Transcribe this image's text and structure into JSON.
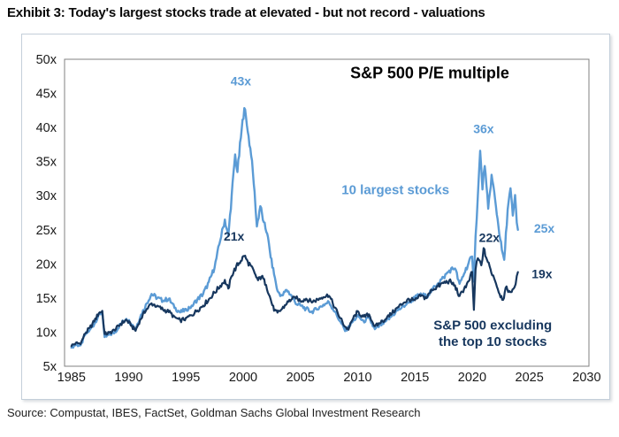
{
  "header": {
    "title": "Exhibit 3: Today's largest stocks trade at elevated - but not record - valuations"
  },
  "footer": {
    "source": "Source: Compustat, IBES, FactSet, Goldman Sachs Global Investment Research"
  },
  "colors": {
    "top10_line": "#5B9BD5",
    "ex_top10_line": "#17375E",
    "plot_border": "#808080",
    "card_border": "#c4cfda",
    "tick_text": "#1a1a1a",
    "title_text": "#000000"
  },
  "chart_data": {
    "type": "line",
    "title": "S&P 500 P/E multiple",
    "xlabel": "",
    "ylabel": "",
    "grid": false,
    "legend": "inline-labels",
    "xlim": [
      1984.4,
      2030.2
    ],
    "ylim": [
      5,
      50
    ],
    "x_ticks": [
      1985,
      1990,
      1995,
      2000,
      2005,
      2010,
      2015,
      2020,
      2025,
      2030
    ],
    "x_tick_labels": [
      "1985",
      "1990",
      "1995",
      "2000",
      "2005",
      "2010",
      "2015",
      "2020",
      "2025",
      "2030"
    ],
    "y_ticks": [
      50,
      45,
      40,
      35,
      30,
      25,
      20,
      15,
      10,
      5
    ],
    "y_tick_labels": [
      "50x",
      "45x",
      "40x",
      "35x",
      "30x",
      "25x",
      "20x",
      "15x",
      "10x",
      "5x"
    ],
    "series": [
      {
        "name": "10 largest stocks",
        "color": "#5B9BD5",
        "width": 2.4,
        "points": [
          [
            1985.0,
            7.8
          ],
          [
            1985.4,
            8.2
          ],
          [
            1985.8,
            8.0
          ],
          [
            1986.2,
            9.6
          ],
          [
            1986.6,
            10.3
          ],
          [
            1987.0,
            11.2
          ],
          [
            1987.4,
            12.6
          ],
          [
            1987.7,
            12.9
          ],
          [
            1987.9,
            9.2
          ],
          [
            1988.3,
            9.6
          ],
          [
            1988.8,
            10.0
          ],
          [
            1989.3,
            11.2
          ],
          [
            1989.8,
            12.0
          ],
          [
            1990.2,
            11.3
          ],
          [
            1990.6,
            10.5
          ],
          [
            1991.0,
            12.2
          ],
          [
            1991.5,
            14.0
          ],
          [
            1992.0,
            15.6
          ],
          [
            1992.5,
            15.0
          ],
          [
            1993.0,
            14.6
          ],
          [
            1993.5,
            14.9
          ],
          [
            1994.0,
            13.6
          ],
          [
            1994.5,
            12.9
          ],
          [
            1995.0,
            13.3
          ],
          [
            1995.5,
            13.8
          ],
          [
            1996.0,
            14.8
          ],
          [
            1996.5,
            15.6
          ],
          [
            1997.0,
            17.3
          ],
          [
            1997.5,
            19.5
          ],
          [
            1998.0,
            23.5
          ],
          [
            1998.4,
            26.5
          ],
          [
            1998.7,
            24.0
          ],
          [
            1999.0,
            30.0
          ],
          [
            1999.3,
            36.0
          ],
          [
            1999.5,
            33.5
          ],
          [
            1999.8,
            38.5
          ],
          [
            2000.1,
            43.0
          ],
          [
            2000.4,
            39.5
          ],
          [
            2000.7,
            36.0
          ],
          [
            2001.0,
            30.5
          ],
          [
            2001.2,
            25.5
          ],
          [
            2001.5,
            28.5
          ],
          [
            2001.8,
            26.0
          ],
          [
            2002.1,
            24.5
          ],
          [
            2002.4,
            21.0
          ],
          [
            2002.7,
            18.5
          ],
          [
            2003.0,
            16.0
          ],
          [
            2003.4,
            15.3
          ],
          [
            2003.8,
            16.2
          ],
          [
            2004.2,
            15.4
          ],
          [
            2004.6,
            14.2
          ],
          [
            2005.0,
            13.9
          ],
          [
            2005.5,
            13.4
          ],
          [
            2006.0,
            13.0
          ],
          [
            2006.5,
            13.4
          ],
          [
            2007.0,
            14.0
          ],
          [
            2007.5,
            14.4
          ],
          [
            2008.0,
            13.0
          ],
          [
            2008.5,
            11.5
          ],
          [
            2008.9,
            10.2
          ],
          [
            2009.2,
            10.8
          ],
          [
            2009.6,
            11.6
          ],
          [
            2010.0,
            12.4
          ],
          [
            2010.5,
            11.6
          ],
          [
            2011.0,
            12.0
          ],
          [
            2011.5,
            10.4
          ],
          [
            2012.0,
            11.0
          ],
          [
            2012.5,
            11.6
          ],
          [
            2013.0,
            12.4
          ],
          [
            2013.5,
            13.2
          ],
          [
            2014.0,
            13.8
          ],
          [
            2014.5,
            14.4
          ],
          [
            2015.0,
            15.0
          ],
          [
            2015.5,
            15.6
          ],
          [
            2016.0,
            15.2
          ],
          [
            2016.5,
            16.2
          ],
          [
            2017.0,
            17.2
          ],
          [
            2017.5,
            18.0
          ],
          [
            2018.0,
            19.0
          ],
          [
            2018.5,
            19.4
          ],
          [
            2018.9,
            17.0
          ],
          [
            2019.3,
            18.6
          ],
          [
            2019.7,
            20.2
          ],
          [
            2020.0,
            21.0
          ],
          [
            2020.15,
            17.5
          ],
          [
            2020.3,
            24.0
          ],
          [
            2020.5,
            30.0
          ],
          [
            2020.7,
            36.5
          ],
          [
            2020.9,
            31.0
          ],
          [
            2021.1,
            34.5
          ],
          [
            2021.4,
            28.0
          ],
          [
            2021.7,
            33.0
          ],
          [
            2022.0,
            29.5
          ],
          [
            2022.3,
            25.5
          ],
          [
            2022.6,
            22.0
          ],
          [
            2022.8,
            20.5
          ],
          [
            2023.1,
            28.0
          ],
          [
            2023.35,
            31.0
          ],
          [
            2023.55,
            27.0
          ],
          [
            2023.75,
            30.0
          ],
          [
            2023.9,
            26.0
          ],
          [
            2024.0,
            25.0
          ]
        ]
      },
      {
        "name": "S&P 500 excluding the top 10 stocks",
        "color": "#17375E",
        "width": 2.2,
        "points": [
          [
            1985.0,
            8.0
          ],
          [
            1985.4,
            8.4
          ],
          [
            1985.8,
            8.3
          ],
          [
            1986.2,
            9.8
          ],
          [
            1986.6,
            10.6
          ],
          [
            1987.0,
            11.6
          ],
          [
            1987.4,
            12.8
          ],
          [
            1987.7,
            13.1
          ],
          [
            1987.9,
            9.7
          ],
          [
            1988.3,
            9.9
          ],
          [
            1988.8,
            10.3
          ],
          [
            1989.3,
            11.2
          ],
          [
            1989.8,
            11.8
          ],
          [
            1990.2,
            11.0
          ],
          [
            1990.6,
            10.2
          ],
          [
            1991.0,
            11.8
          ],
          [
            1991.5,
            13.2
          ],
          [
            1992.0,
            14.2
          ],
          [
            1992.5,
            13.8
          ],
          [
            1993.0,
            13.3
          ],
          [
            1993.5,
            13.0
          ],
          [
            1994.0,
            12.2
          ],
          [
            1994.5,
            11.7
          ],
          [
            1995.0,
            12.0
          ],
          [
            1995.5,
            12.5
          ],
          [
            1996.0,
            13.2
          ],
          [
            1996.5,
            13.9
          ],
          [
            1997.0,
            14.8
          ],
          [
            1997.5,
            15.8
          ],
          [
            1998.0,
            16.8
          ],
          [
            1998.4,
            17.6
          ],
          [
            1998.7,
            16.3
          ],
          [
            1999.0,
            18.3
          ],
          [
            1999.4,
            19.6
          ],
          [
            1999.8,
            20.5
          ],
          [
            2000.1,
            21.2
          ],
          [
            2000.4,
            20.3
          ],
          [
            2000.7,
            19.6
          ],
          [
            2001.0,
            18.6
          ],
          [
            2001.3,
            17.6
          ],
          [
            2001.6,
            18.2
          ],
          [
            2002.0,
            17.0
          ],
          [
            2002.4,
            14.8
          ],
          [
            2002.7,
            13.2
          ],
          [
            2003.0,
            12.8
          ],
          [
            2003.4,
            13.4
          ],
          [
            2003.8,
            14.2
          ],
          [
            2004.2,
            14.8
          ],
          [
            2004.6,
            15.0
          ],
          [
            2005.0,
            14.6
          ],
          [
            2005.5,
            14.9
          ],
          [
            2006.0,
            14.4
          ],
          [
            2006.5,
            14.8
          ],
          [
            2007.0,
            15.2
          ],
          [
            2007.5,
            15.4
          ],
          [
            2008.0,
            13.6
          ],
          [
            2008.5,
            12.0
          ],
          [
            2008.9,
            10.8
          ],
          [
            2009.2,
            10.4
          ],
          [
            2009.6,
            12.0
          ],
          [
            2010.0,
            13.0
          ],
          [
            2010.5,
            12.2
          ],
          [
            2011.0,
            12.6
          ],
          [
            2011.5,
            10.8
          ],
          [
            2012.0,
            11.4
          ],
          [
            2012.5,
            12.0
          ],
          [
            2013.0,
            12.8
          ],
          [
            2013.5,
            13.6
          ],
          [
            2014.0,
            14.3
          ],
          [
            2014.5,
            14.8
          ],
          [
            2015.0,
            14.6
          ],
          [
            2015.5,
            15.3
          ],
          [
            2016.0,
            15.0
          ],
          [
            2016.5,
            16.2
          ],
          [
            2017.0,
            16.7
          ],
          [
            2017.5,
            17.2
          ],
          [
            2018.0,
            17.5
          ],
          [
            2018.5,
            16.8
          ],
          [
            2018.9,
            15.2
          ],
          [
            2019.3,
            16.4
          ],
          [
            2019.7,
            17.4
          ],
          [
            2020.0,
            18.8
          ],
          [
            2020.15,
            13.2
          ],
          [
            2020.3,
            19.2
          ],
          [
            2020.5,
            20.8
          ],
          [
            2020.8,
            19.8
          ],
          [
            2021.0,
            22.2
          ],
          [
            2021.3,
            20.6
          ],
          [
            2021.6,
            19.2
          ],
          [
            2022.0,
            17.6
          ],
          [
            2022.4,
            15.6
          ],
          [
            2022.7,
            14.8
          ],
          [
            2023.0,
            16.6
          ],
          [
            2023.3,
            15.8
          ],
          [
            2023.6,
            16.4
          ],
          [
            2023.8,
            17.0
          ],
          [
            2024.0,
            18.8
          ]
        ]
      }
    ],
    "annotations": [
      {
        "name": "chart-title",
        "text": "S&P 500 P/E multiple",
        "x": 2016.3,
        "y": 47.2,
        "color": "#000000",
        "size": 18
      },
      {
        "name": "peak-2000-top10-label",
        "text": "43x",
        "x": 1999.8,
        "y": 46.2,
        "color": "#5B9BD5",
        "size": 14
      },
      {
        "name": "peak-2000-ex10-label",
        "text": "21x",
        "x": 1999.2,
        "y": 23.4,
        "color": "#17375E",
        "size": 14
      },
      {
        "name": "peak-2021-top10-label",
        "text": "36x",
        "x": 2021.0,
        "y": 39.2,
        "color": "#5B9BD5",
        "size": 14
      },
      {
        "name": "peak-2021-ex10-label",
        "text": "22x",
        "x": 2021.5,
        "y": 23.2,
        "color": "#17375E",
        "size": 14
      },
      {
        "name": "latest-top10-label",
        "text": "25x",
        "x": 2026.3,
        "y": 24.6,
        "color": "#5B9BD5",
        "size": 14
      },
      {
        "name": "latest-ex10-label",
        "text": "19x",
        "x": 2026.1,
        "y": 17.9,
        "color": "#17375E",
        "size": 14
      },
      {
        "name": "series-label-top10",
        "text": "10 largest stocks",
        "x": 2013.3,
        "y": 30.2,
        "color": "#5B9BD5",
        "size": 15
      },
      {
        "name": "series-label-ex10-1",
        "text": "S&P 500 excluding",
        "x": 2021.8,
        "y": 10.4,
        "color": "#17375E",
        "size": 15
      },
      {
        "name": "series-label-ex10-2",
        "text": "the top 10 stocks",
        "x": 2021.8,
        "y": 8.0,
        "color": "#17375E",
        "size": 15
      }
    ]
  }
}
